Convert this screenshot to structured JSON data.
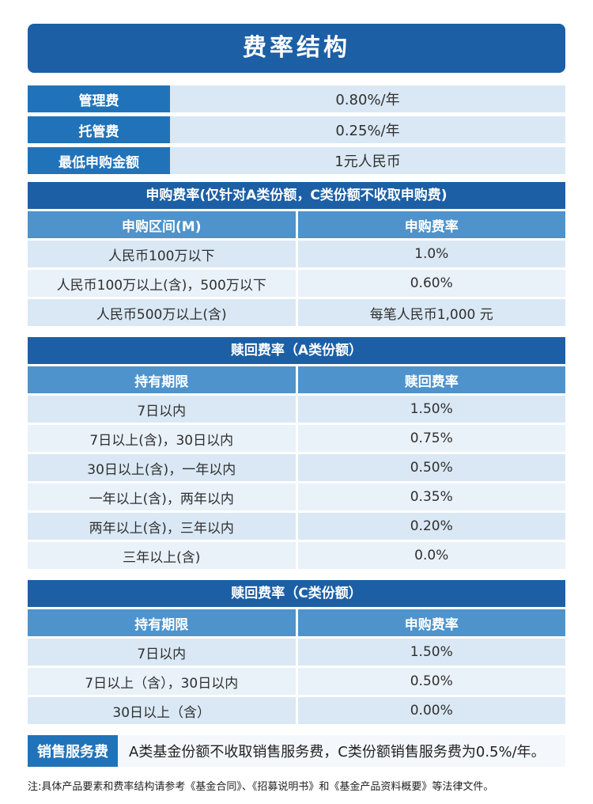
{
  "title": "费率结构",
  "basic_fees": [
    {
      "label": "管理费",
      "value": "0.80%/年"
    },
    {
      "label": "托管费",
      "value": "0.25%/年"
    },
    {
      "label": "最低申购金额",
      "value": "1元人民币"
    }
  ],
  "subscription_table": {
    "header": "申购费率(仅针对A类份额，C类份额不收取申购费)",
    "columns": [
      "申购区间(M)",
      "申购费率"
    ],
    "rows": [
      [
        "人民币100万以下",
        "1.0%"
      ],
      [
        "人民币100万以上(含)，500万以下",
        "0.60%"
      ],
      [
        "人民币500万以上(含)",
        "每笔人民币1,000 元"
      ]
    ]
  },
  "redemption_a_table": {
    "header": "赎回费率（A类份额）",
    "columns": [
      "持有期限",
      "赎回费率"
    ],
    "rows": [
      [
        "7日以内",
        "1.50%"
      ],
      [
        "7日以上(含)，30日以内",
        "0.75%"
      ],
      [
        "30日以上(含)，一年以内",
        "0.50%"
      ],
      [
        "一年以上(含)，两年以内",
        "0.35%"
      ],
      [
        "两年以上(含)，三年以内",
        "0.20%"
      ],
      [
        "三年以上(含)",
        "0.0%"
      ]
    ]
  },
  "redemption_c_table": {
    "header": "赎回费率（C类份额）",
    "columns": [
      "持有期限",
      "申购费率"
    ],
    "rows": [
      [
        "7日以内",
        "1.50%"
      ],
      [
        "7日以上（含），30日以内",
        "0.50%"
      ],
      [
        "30日以上（含）",
        "0.00%"
      ]
    ]
  },
  "service_fee": {
    "label": "销售服务费",
    "text": "A类基金份额不收取销售服务费，C类份额销售服务费为0.5%/年。"
  },
  "footnote": "注:具体产品要素和费率结构请参考《基金合同》、《招募说明书》和《基金产品资料概要》等法律文件。",
  "colors": {
    "dark_blue": "#1c5fa5",
    "label_blue": "#2173b9",
    "column_header_blue": "#4e93cc",
    "row_dark": "#d9e8f4",
    "row_light": "#e9f1f9"
  }
}
